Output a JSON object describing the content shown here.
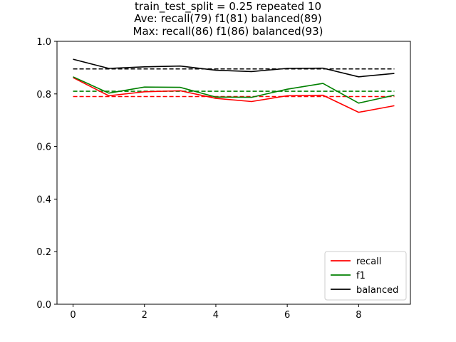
{
  "title": {
    "line1": "train_test_split = 0.25 repeated 10",
    "line2": "Ave: recall(79) f1(81) balanced(89)",
    "line3": "Max: recall(86) f1(86) balanced(93)"
  },
  "chart_data": {
    "type": "line",
    "x": [
      0,
      1,
      2,
      3,
      4,
      5,
      6,
      7,
      8,
      9
    ],
    "xlim": [
      -0.45,
      9.45
    ],
    "ylim": [
      0.0,
      1.0
    ],
    "xticks": [
      0,
      2,
      4,
      6,
      8
    ],
    "yticks": [
      0.0,
      0.2,
      0.4,
      0.6,
      0.8,
      1.0
    ],
    "xticklabels": [
      "0",
      "2",
      "4",
      "6",
      "8"
    ],
    "yticklabels": [
      "0.0",
      "0.2",
      "0.4",
      "0.6",
      "0.8",
      "1.0"
    ],
    "grid": false,
    "legend_position": "lower-right",
    "series": [
      {
        "name": "recall",
        "color": "#ff0000",
        "values": [
          0.862,
          0.793,
          0.808,
          0.812,
          0.783,
          0.771,
          0.793,
          0.795,
          0.73,
          0.755
        ]
      },
      {
        "name": "f1",
        "color": "#008000",
        "values": [
          0.865,
          0.803,
          0.826,
          0.825,
          0.788,
          0.787,
          0.818,
          0.84,
          0.765,
          0.795
        ]
      },
      {
        "name": "balanced",
        "color": "#000000",
        "values": [
          0.932,
          0.897,
          0.903,
          0.906,
          0.89,
          0.885,
          0.897,
          0.898,
          0.865,
          0.878
        ]
      }
    ],
    "reference_lines": [
      {
        "series": "recall",
        "y": 0.79,
        "color": "#ff0000",
        "style": "dashed"
      },
      {
        "series": "f1",
        "y": 0.81,
        "color": "#008000",
        "style": "dashed"
      },
      {
        "series": "balanced",
        "y": 0.895,
        "color": "#000000",
        "style": "dashed"
      }
    ]
  }
}
